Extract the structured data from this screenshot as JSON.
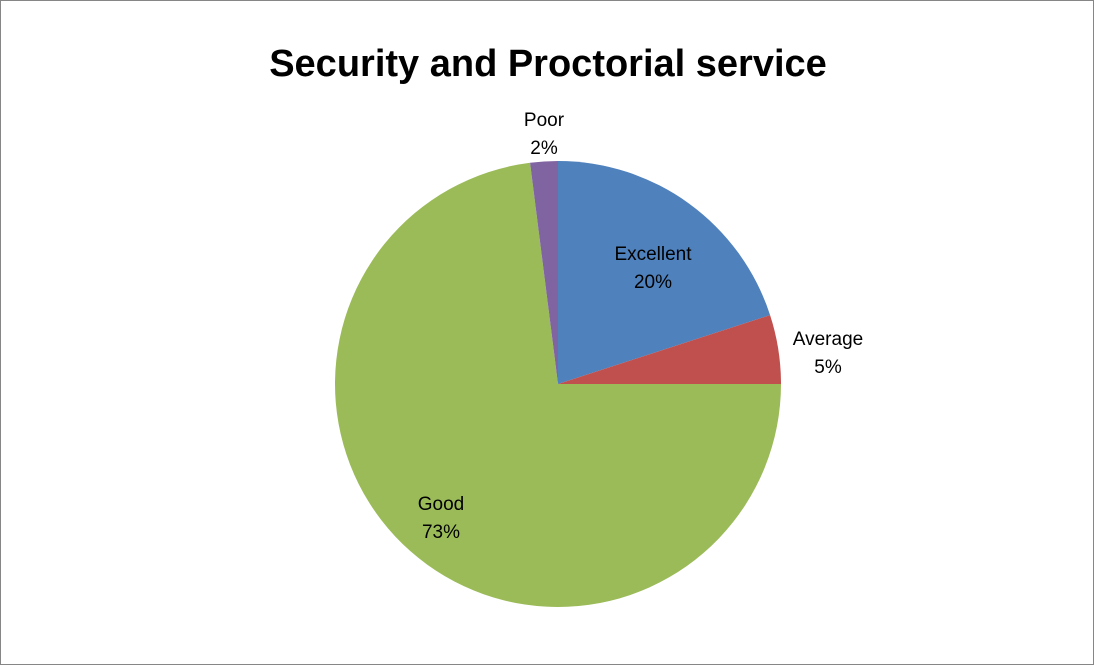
{
  "chart_data": {
    "type": "pie",
    "title": "Security and Proctorial service",
    "slices": [
      {
        "name": "Excellent",
        "value": 20,
        "label": "20%",
        "color": "#4F81BD"
      },
      {
        "name": "Average",
        "value": 5,
        "label": "5%",
        "color": "#C0504D"
      },
      {
        "name": "Good",
        "value": 73,
        "label": "73%",
        "color": "#9BBB59"
      },
      {
        "name": "Poor",
        "value": 2,
        "label": "2%",
        "color": "#8064A2"
      }
    ],
    "start_angle_deg": 0,
    "direction": "clockwise",
    "legend": "none"
  }
}
